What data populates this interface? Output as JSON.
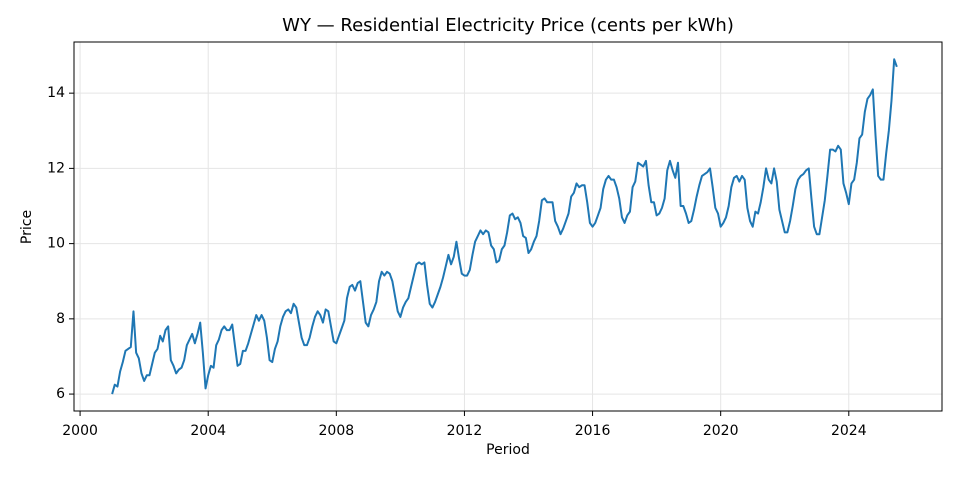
{
  "chart_data": {
    "type": "line",
    "title": "WY — Residential Electricity Price (cents per kWh)",
    "x_label": "Period",
    "y_label": "Price",
    "xlim": [
      1999.81,
      2026.91
    ],
    "ylim": [
      5.55,
      15.36
    ],
    "xticks": [
      2000,
      2004,
      2008,
      2012,
      2016,
      2020,
      2024
    ],
    "yticks": [
      6,
      8,
      10,
      12,
      14
    ],
    "grid": true,
    "x": [
      2001.0,
      2001.083,
      2001.167,
      2001.25,
      2001.333,
      2001.417,
      2001.5,
      2001.583,
      2001.667,
      2001.75,
      2001.833,
      2001.917,
      2002.0,
      2002.083,
      2002.167,
      2002.25,
      2002.333,
      2002.417,
      2002.5,
      2002.583,
      2002.667,
      2002.75,
      2002.833,
      2002.917,
      2003.0,
      2003.083,
      2003.167,
      2003.25,
      2003.333,
      2003.417,
      2003.5,
      2003.583,
      2003.667,
      2003.75,
      2003.833,
      2003.917,
      2004.0,
      2004.083,
      2004.167,
      2004.25,
      2004.333,
      2004.417,
      2004.5,
      2004.583,
      2004.667,
      2004.75,
      2004.833,
      2004.917,
      2005.0,
      2005.083,
      2005.167,
      2005.25,
      2005.333,
      2005.417,
      2005.5,
      2005.583,
      2005.667,
      2005.75,
      2005.833,
      2005.917,
      2006.0,
      2006.083,
      2006.167,
      2006.25,
      2006.333,
      2006.417,
      2006.5,
      2006.583,
      2006.667,
      2006.75,
      2006.833,
      2006.917,
      2007.0,
      2007.083,
      2007.167,
      2007.25,
      2007.333,
      2007.417,
      2007.5,
      2007.583,
      2007.667,
      2007.75,
      2007.833,
      2007.917,
      2008.0,
      2008.083,
      2008.167,
      2008.25,
      2008.333,
      2008.417,
      2008.5,
      2008.583,
      2008.667,
      2008.75,
      2008.833,
      2008.917,
      2009.0,
      2009.083,
      2009.167,
      2009.25,
      2009.333,
      2009.417,
      2009.5,
      2009.583,
      2009.667,
      2009.75,
      2009.833,
      2009.917,
      2010.0,
      2010.083,
      2010.167,
      2010.25,
      2010.333,
      2010.417,
      2010.5,
      2010.583,
      2010.667,
      2010.75,
      2010.833,
      2010.917,
      2011.0,
      2011.083,
      2011.167,
      2011.25,
      2011.333,
      2011.417,
      2011.5,
      2011.583,
      2011.667,
      2011.75,
      2011.833,
      2011.917,
      2012.0,
      2012.083,
      2012.167,
      2012.25,
      2012.333,
      2012.417,
      2012.5,
      2012.583,
      2012.667,
      2012.75,
      2012.833,
      2012.917,
      2013.0,
      2013.083,
      2013.167,
      2013.25,
      2013.333,
      2013.417,
      2013.5,
      2013.583,
      2013.667,
      2013.75,
      2013.833,
      2013.917,
      2014.0,
      2014.083,
      2014.167,
      2014.25,
      2014.333,
      2014.417,
      2014.5,
      2014.583,
      2014.667,
      2014.75,
      2014.833,
      2014.917,
      2015.0,
      2015.083,
      2015.167,
      2015.25,
      2015.333,
      2015.417,
      2015.5,
      2015.583,
      2015.667,
      2015.75,
      2015.833,
      2015.917,
      2016.0,
      2016.083,
      2016.167,
      2016.25,
      2016.333,
      2016.417,
      2016.5,
      2016.583,
      2016.667,
      2016.75,
      2016.833,
      2016.917,
      2017.0,
      2017.083,
      2017.167,
      2017.25,
      2017.333,
      2017.417,
      2017.5,
      2017.583,
      2017.667,
      2017.75,
      2017.833,
      2017.917,
      2018.0,
      2018.083,
      2018.167,
      2018.25,
      2018.333,
      2018.417,
      2018.5,
      2018.583,
      2018.667,
      2018.75,
      2018.833,
      2018.917,
      2019.0,
      2019.083,
      2019.167,
      2019.25,
      2019.333,
      2019.417,
      2019.5,
      2019.583,
      2019.667,
      2019.75,
      2019.833,
      2019.917,
      2020.0,
      2020.083,
      2020.167,
      2020.25,
      2020.333,
      2020.417,
      2020.5,
      2020.583,
      2020.667,
      2020.75,
      2020.833,
      2020.917,
      2021.0,
      2021.083,
      2021.167,
      2021.25,
      2021.333,
      2021.417,
      2021.5,
      2021.583,
      2021.667,
      2021.75,
      2021.833,
      2021.917,
      2022.0,
      2022.083,
      2022.167,
      2022.25,
      2022.333,
      2022.417,
      2022.5,
      2022.583,
      2022.667,
      2022.75,
      2022.833,
      2022.917,
      2023.0,
      2023.083,
      2023.167,
      2023.25,
      2023.333,
      2023.417,
      2023.5,
      2023.583,
      2023.667,
      2023.75,
      2023.833,
      2023.917,
      2024.0,
      2024.083,
      2024.167,
      2024.25,
      2024.333,
      2024.417,
      2024.5,
      2024.583,
      2024.667,
      2024.75,
      2024.833,
      2024.917,
      2025.0,
      2025.083,
      2025.167,
      2025.25,
      2025.333,
      2025.417,
      2025.5
    ],
    "series": [
      {
        "color": "#1f77b4",
        "values": [
          6.0,
          6.25,
          6.2,
          6.6,
          6.85,
          7.15,
          7.2,
          7.25,
          8.2,
          7.1,
          6.95,
          6.55,
          6.35,
          6.5,
          6.5,
          6.8,
          7.1,
          7.2,
          7.55,
          7.4,
          7.7,
          7.8,
          6.9,
          6.75,
          6.55,
          6.65,
          6.7,
          6.9,
          7.3,
          7.45,
          7.6,
          7.35,
          7.6,
          7.9,
          7.1,
          6.15,
          6.5,
          6.75,
          6.7,
          7.3,
          7.45,
          7.7,
          7.8,
          7.7,
          7.7,
          7.85,
          7.3,
          6.75,
          6.8,
          7.15,
          7.15,
          7.35,
          7.6,
          7.85,
          8.1,
          7.95,
          8.1,
          7.95,
          7.5,
          6.9,
          6.85,
          7.2,
          7.4,
          7.8,
          8.05,
          8.2,
          8.25,
          8.15,
          8.4,
          8.3,
          7.9,
          7.5,
          7.3,
          7.3,
          7.5,
          7.8,
          8.05,
          8.2,
          8.1,
          7.9,
          8.25,
          8.2,
          7.8,
          7.4,
          7.35,
          7.55,
          7.75,
          7.95,
          8.55,
          8.85,
          8.9,
          8.75,
          8.95,
          9.0,
          8.45,
          7.9,
          7.8,
          8.1,
          8.25,
          8.45,
          9.0,
          9.25,
          9.15,
          9.25,
          9.2,
          9.0,
          8.6,
          8.2,
          8.05,
          8.3,
          8.45,
          8.55,
          8.85,
          9.15,
          9.45,
          9.5,
          9.45,
          9.5,
          8.9,
          8.4,
          8.3,
          8.45,
          8.65,
          8.85,
          9.1,
          9.4,
          9.7,
          9.45,
          9.65,
          10.05,
          9.6,
          9.2,
          9.15,
          9.15,
          9.3,
          9.7,
          10.05,
          10.2,
          10.35,
          10.25,
          10.35,
          10.3,
          9.95,
          9.85,
          9.5,
          9.55,
          9.85,
          9.95,
          10.3,
          10.75,
          10.8,
          10.65,
          10.7,
          10.55,
          10.2,
          10.15,
          9.75,
          9.85,
          10.05,
          10.2,
          10.6,
          11.15,
          11.2,
          11.1,
          11.1,
          11.1,
          10.6,
          10.45,
          10.25,
          10.4,
          10.6,
          10.8,
          11.25,
          11.35,
          11.6,
          11.5,
          11.55,
          11.55,
          11.1,
          10.55,
          10.45,
          10.55,
          10.75,
          10.95,
          11.45,
          11.7,
          11.8,
          11.7,
          11.7,
          11.5,
          11.2,
          10.7,
          10.55,
          10.75,
          10.85,
          11.5,
          11.65,
          12.15,
          12.1,
          12.05,
          12.2,
          11.55,
          11.1,
          11.1,
          10.75,
          10.8,
          10.95,
          11.2,
          11.95,
          12.2,
          11.95,
          11.75,
          12.15,
          11.0,
          11.0,
          10.8,
          10.55,
          10.6,
          10.9,
          11.25,
          11.55,
          11.8,
          11.85,
          11.9,
          12.0,
          11.5,
          10.95,
          10.8,
          10.45,
          10.55,
          10.7,
          11.0,
          11.5,
          11.75,
          11.8,
          11.65,
          11.8,
          11.7,
          10.95,
          10.6,
          10.45,
          10.85,
          10.8,
          11.1,
          11.5,
          12.0,
          11.7,
          11.6,
          12.0,
          11.65,
          10.9,
          10.6,
          10.3,
          10.3,
          10.6,
          11.0,
          11.45,
          11.7,
          11.8,
          11.85,
          11.95,
          12.0,
          11.2,
          10.45,
          10.25,
          10.25,
          10.7,
          11.15,
          11.8,
          12.5,
          12.5,
          12.45,
          12.6,
          12.5,
          11.6,
          11.35,
          11.05,
          11.6,
          11.7,
          12.15,
          12.8,
          12.9,
          13.5,
          13.85,
          13.95,
          14.1,
          12.9,
          11.8,
          11.7,
          11.7,
          12.4,
          13.0,
          13.8,
          14.9,
          14.7
        ]
      }
    ]
  }
}
